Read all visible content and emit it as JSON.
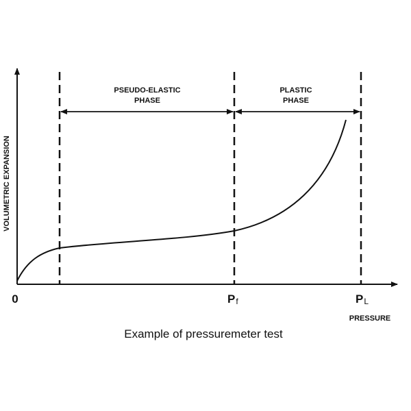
{
  "diagram": {
    "y_axis_label": "VOLUMETRIC EXPANSION",
    "x_axis_label": "PRESSURE",
    "origin_label": "0",
    "markers": {
      "pf": {
        "main": "P",
        "sub": "f"
      },
      "pl": {
        "main": "P",
        "sub": "L"
      }
    },
    "phases": {
      "pseudo_elastic": {
        "line1": "PSEUDO-ELASTIC",
        "line2": "PHASE"
      },
      "plastic": {
        "line1": "PLASTIC",
        "line2": "PHASE"
      }
    },
    "caption": "Example of pressuremeter test",
    "colors": {
      "ink": "#111111",
      "background": "#ffffff"
    }
  }
}
